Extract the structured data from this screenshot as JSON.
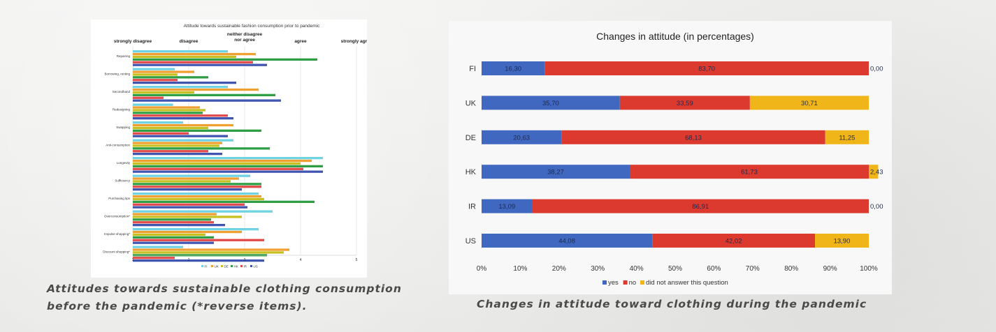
{
  "captions": {
    "left": "Attitudes towards sustainable clothing consumption before the pandemic (*reverse items).",
    "right": "Changes in attitude toward clothing during the pandemic"
  },
  "chart_data": [
    {
      "type": "bar",
      "orientation": "horizontal",
      "title": "Attitude towards sustainable fashion consumption prior to pandemic",
      "scale_labels": [
        "strongly disagree",
        "disagree",
        "neither disagree\nnor agree",
        "agree",
        "strongly agree"
      ],
      "categories": [
        "Repairing",
        "Borrowing, renting",
        "Secondhand",
        "Redesigning",
        "Swapping",
        "Anti-consumption",
        "Longevity",
        "Sufficiency",
        "Purchasing tips",
        "Overconsumption*",
        "Impulse shopping*",
        "Discount shopping*"
      ],
      "series": [
        {
          "name": "FI",
          "color": "#6fd3e3",
          "values": [
            2.7,
            1.75,
            2.7,
            1.72,
            1.9,
            2.8,
            4.4,
            3.1,
            3.25,
            3.5,
            3.25,
            1.9
          ]
        },
        {
          "name": "UK",
          "color": "#f0a030",
          "values": [
            3.2,
            2.1,
            3.25,
            2.2,
            2.8,
            2.6,
            4.2,
            2.9,
            3.3,
            2.5,
            2.95,
            3.8
          ]
        },
        {
          "name": "DE",
          "color": "#c8c020",
          "values": [
            2.85,
            1.8,
            2.1,
            2.3,
            2.35,
            2.55,
            4.0,
            2.75,
            3.35,
            2.95,
            2.3,
            3.7
          ]
        },
        {
          "name": "HK",
          "color": "#2f9e44",
          "values": [
            4.3,
            2.35,
            3.55,
            2.25,
            3.3,
            3.45,
            4.4,
            3.3,
            4.25,
            2.4,
            2.45,
            3.4
          ]
        },
        {
          "name": "IR",
          "color": "#e24a4a",
          "values": [
            3.15,
            1.8,
            1.55,
            2.7,
            2.0,
            2.35,
            4.05,
            3.3,
            3.0,
            2.45,
            3.35,
            1.75
          ]
        },
        {
          "name": "US",
          "color": "#4055b0",
          "values": [
            3.4,
            2.85,
            3.65,
            2.8,
            2.7,
            2.6,
            4.4,
            2.95,
            3.05,
            2.65,
            2.45,
            3.35
          ]
        }
      ],
      "xticks": [
        "1",
        "2",
        "3",
        "4",
        "5"
      ],
      "xlim": [
        1,
        5
      ],
      "legend_position": "bottom",
      "grid": false
    },
    {
      "type": "bar",
      "orientation": "horizontal",
      "stacked": true,
      "title": "Changes in attitude (in percentages)",
      "categories": [
        "FI",
        "UK",
        "DE",
        "HK",
        "IR",
        "US"
      ],
      "series": [
        {
          "name": "yes",
          "color": "#4068c0",
          "values": [
            16.3,
            35.7,
            20.63,
            38.27,
            13.09,
            44.08
          ]
        },
        {
          "name": "no",
          "color": "#dc3a2f",
          "values": [
            83.7,
            33.59,
            68.13,
            61.73,
            86.91,
            42.02
          ]
        },
        {
          "name": "did not answer this question",
          "color": "#f0b619",
          "values": [
            0.0,
            30.71,
            11.25,
            2.43,
            0.0,
            13.9
          ]
        }
      ],
      "labels": [
        [
          "16,30",
          "83,70",
          "0,00"
        ],
        [
          "35,70",
          "33,59",
          "30,71"
        ],
        [
          "20,63",
          "68,13",
          "11,25"
        ],
        [
          "38,27",
          "61,73",
          "2,43"
        ],
        [
          "13,09",
          "86,91",
          "0,00"
        ],
        [
          "44,08",
          "42,02",
          "13,90"
        ]
      ],
      "xticks": [
        "0%",
        "10%",
        "20%",
        "30%",
        "40%",
        "50%",
        "60%",
        "70%",
        "80%",
        "90%",
        "100%"
      ],
      "xlim": [
        0,
        100
      ],
      "legend_position": "bottom",
      "grid": false
    }
  ]
}
